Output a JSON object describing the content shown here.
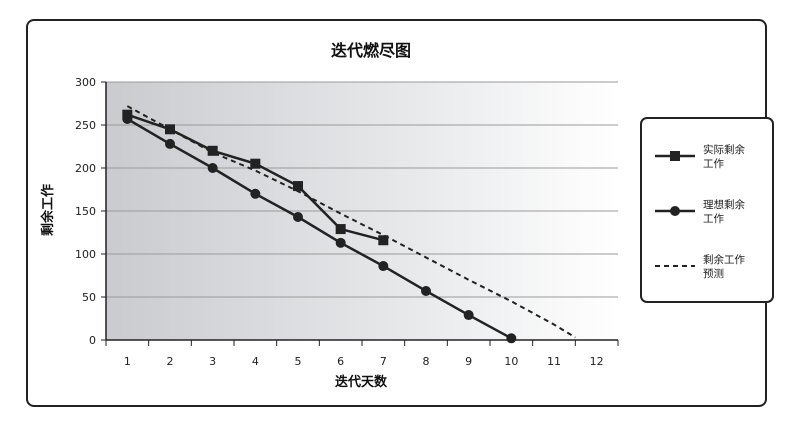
{
  "chart_data": {
    "type": "line",
    "title": "迭代燃尽图",
    "xlabel": "迭代天数",
    "ylabel": "剩余工作",
    "x": [
      1,
      2,
      3,
      4,
      5,
      6,
      7,
      8,
      9,
      10,
      11,
      12
    ],
    "xlim": [
      0.5,
      12.5
    ],
    "ylim": [
      0,
      300
    ],
    "yticks": [
      0,
      50,
      100,
      150,
      200,
      250,
      300
    ],
    "grid": true,
    "legend_position": "right",
    "series": [
      {
        "name": "实际剩余工作",
        "line1": "实际剩余",
        "line2": "工作",
        "marker": "square",
        "style": "solid",
        "color": "#222222",
        "x": [
          1,
          2,
          3,
          4,
          5,
          6,
          7
        ],
        "values": [
          262,
          245,
          220,
          205,
          179,
          129,
          116
        ]
      },
      {
        "name": "理想剩余工作",
        "line1": "理想剩余",
        "line2": "工作",
        "marker": "circle",
        "style": "solid",
        "color": "#222222",
        "x": [
          1,
          2,
          3,
          4,
          5,
          6,
          7,
          8,
          9,
          10
        ],
        "values": [
          257,
          228,
          200,
          170,
          143,
          113,
          86,
          57,
          29,
          2
        ]
      },
      {
        "name": "剩余工作预测",
        "line1": "剩余工作",
        "line2": "预测",
        "marker": "none",
        "style": "dashed",
        "color": "#222222",
        "x": [
          1,
          2,
          3,
          4,
          5,
          6,
          7,
          8,
          9,
          10,
          11,
          11.5
        ],
        "values": [
          272,
          245,
          218,
          197,
          173,
          147,
          122,
          96,
          70,
          45,
          18,
          3
        ]
      }
    ]
  }
}
